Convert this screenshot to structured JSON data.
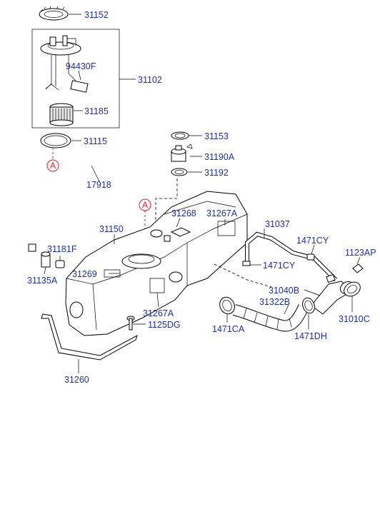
{
  "accent_color": "#1f2fa8",
  "ref_color": "#e0202a",
  "labels": {
    "p31152": "31152",
    "p94430F": "94430F",
    "p31102": "31102",
    "p31185": "31185",
    "p31115": "31115",
    "p31153": "31153",
    "p31190A": "31190A",
    "p31192": "31192",
    "p17918": "17918",
    "p31268": "31268",
    "p31267A_top": "31267A",
    "p31150": "31150",
    "p31037": "31037",
    "p1471CY_a": "1471CY",
    "p31181F": "31181F",
    "p1123AP": "1123AP",
    "p1471CY_b": "1471CY",
    "p31135A": "31135A",
    "p31269": "31269",
    "p31040B": "31040B",
    "p31322B": "31322B",
    "p31267A_bot": "31267A",
    "p31010C": "31010C",
    "p1125DG": "1125DG",
    "p1471CA": "1471CA",
    "p1471DH": "1471DH",
    "p31260": "31260"
  },
  "refs": {
    "a1": "A",
    "a2": "A"
  }
}
